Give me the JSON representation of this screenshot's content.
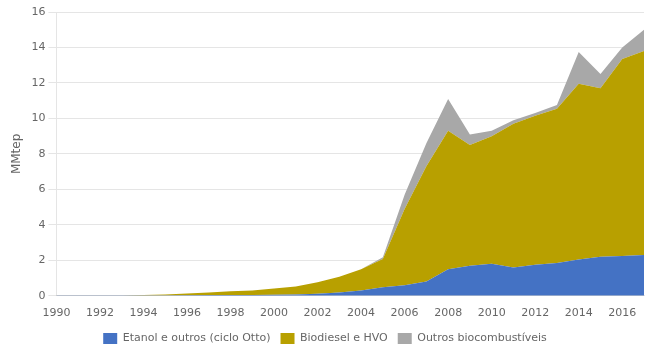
{
  "chart_data": {
    "type": "area",
    "stacked": true,
    "x": [
      1990,
      1991,
      1992,
      1993,
      1994,
      1995,
      1996,
      1997,
      1998,
      1999,
      2000,
      2001,
      2002,
      2003,
      2004,
      2005,
      2006,
      2007,
      2008,
      2009,
      2010,
      2011,
      2012,
      2013,
      2014,
      2015,
      2016,
      2017
    ],
    "series": [
      {
        "name": "Etanol e outros (ciclo Otto)",
        "color": "#4472C4",
        "values": [
          0.01,
          0.01,
          0.01,
          0.01,
          0.02,
          0.02,
          0.03,
          0.04,
          0.05,
          0.05,
          0.06,
          0.08,
          0.12,
          0.18,
          0.3,
          0.48,
          0.6,
          0.8,
          1.5,
          1.7,
          1.8,
          1.6,
          1.75,
          1.85,
          2.05,
          2.2,
          2.25,
          2.3
        ]
      },
      {
        "name": "Biodiesel e HVO",
        "color": "#B8A000",
        "values": [
          0.0,
          0.0,
          0.01,
          0.01,
          0.03,
          0.05,
          0.1,
          0.15,
          0.2,
          0.25,
          0.35,
          0.45,
          0.65,
          0.9,
          1.2,
          1.6,
          4.3,
          6.5,
          7.8,
          6.8,
          7.2,
          8.1,
          8.4,
          8.7,
          9.9,
          9.5,
          11.1,
          11.5
        ]
      },
      {
        "name": "Outros biocombustíveis",
        "color": "#A8A8A8",
        "values": [
          0.0,
          0.0,
          0.0,
          0.0,
          0.0,
          0.0,
          0.0,
          0.0,
          0.0,
          0.0,
          0.0,
          0.0,
          0.0,
          0.0,
          0.0,
          0.1,
          0.8,
          1.3,
          1.8,
          0.6,
          0.3,
          0.2,
          0.15,
          0.2,
          1.8,
          0.8,
          0.65,
          1.2
        ]
      }
    ],
    "ylabel": "MMtep",
    "xlim": [
      1990,
      2017
    ],
    "xticks": [
      1990,
      1992,
      1994,
      1996,
      1998,
      2000,
      2002,
      2004,
      2006,
      2008,
      2010,
      2012,
      2014,
      2016
    ],
    "ylim": [
      0,
      16
    ],
    "yticks": [
      0,
      2,
      4,
      6,
      8,
      10,
      12,
      14,
      16
    ],
    "grid": true,
    "legend": "bottom"
  }
}
